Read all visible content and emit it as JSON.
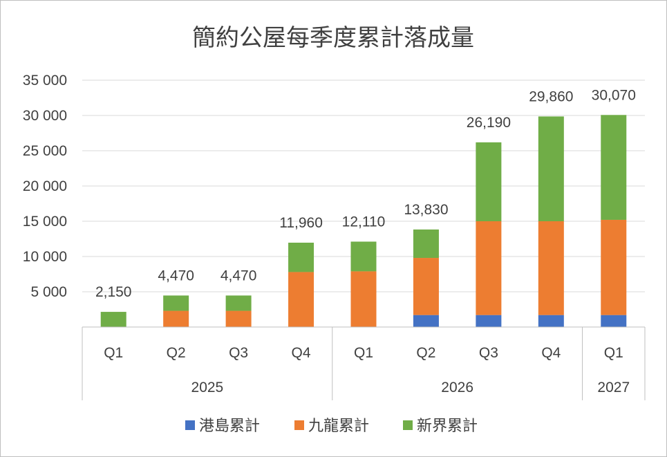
{
  "chart_data": {
    "type": "bar",
    "stacked": true,
    "title": "簡約公屋每季度累計落成量",
    "categories": [
      {
        "quarter": "Q1",
        "year": "2025"
      },
      {
        "quarter": "Q2",
        "year": "2025"
      },
      {
        "quarter": "Q3",
        "year": "2025"
      },
      {
        "quarter": "Q4",
        "year": "2025"
      },
      {
        "quarter": "Q1",
        "year": "2026"
      },
      {
        "quarter": "Q2",
        "year": "2026"
      },
      {
        "quarter": "Q3",
        "year": "2026"
      },
      {
        "quarter": "Q4",
        "year": "2026"
      },
      {
        "quarter": "Q1",
        "year": "2027"
      }
    ],
    "years": [
      "2025",
      "2026",
      "2027"
    ],
    "series": [
      {
        "name": "港島累計",
        "color": "#4472c4",
        "values": [
          0,
          0,
          0,
          0,
          0,
          1700,
          1700,
          1700,
          1700
        ]
      },
      {
        "name": "九龍累計",
        "color": "#ed7d31",
        "values": [
          0,
          2300,
          2300,
          7800,
          7900,
          8100,
          13300,
          13300,
          13500
        ]
      },
      {
        "name": "新界累計",
        "color": "#70ad47",
        "values": [
          2150,
          2170,
          2170,
          4160,
          4210,
          4030,
          11190,
          14860,
          14870
        ]
      }
    ],
    "totals": [
      "2,150",
      "4,470",
      "4,470",
      "11,960",
      "12,110",
      "13,830",
      "26,190",
      "29,860",
      "30,070"
    ],
    "ylim": [
      0,
      35000
    ],
    "yticks": [
      5000,
      10000,
      15000,
      20000,
      25000,
      30000,
      35000
    ],
    "ytick_labels": [
      "5 000",
      "10 000",
      "15 000",
      "20 000",
      "25 000",
      "30 000",
      "35 000"
    ],
    "grid": true,
    "legend_position": "bottom"
  }
}
